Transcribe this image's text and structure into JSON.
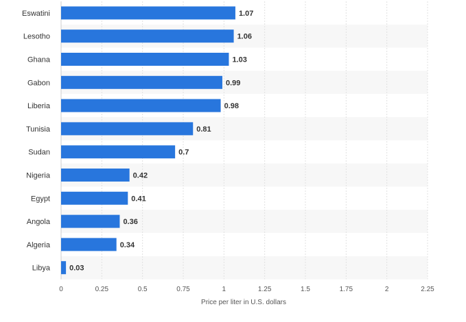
{
  "chart_data": {
    "type": "bar",
    "orientation": "horizontal",
    "categories": [
      "Eswatini",
      "Lesotho",
      "Ghana",
      "Gabon",
      "Liberia",
      "Tunisia",
      "Sudan",
      "Nigeria",
      "Egypt",
      "Angola",
      "Algeria",
      "Libya"
    ],
    "values": [
      1.07,
      1.06,
      1.03,
      0.99,
      0.98,
      0.81,
      0.7,
      0.42,
      0.41,
      0.36,
      0.34,
      0.03
    ],
    "value_labels": [
      "1.07",
      "1.06",
      "1.03",
      "0.99",
      "0.98",
      "0.81",
      "0.7",
      "0.42",
      "0.41",
      "0.36",
      "0.34",
      "0.03"
    ],
    "x_ticks": [
      "0",
      "0.25",
      "0.5",
      "0.75",
      "1",
      "1.25",
      "1.5",
      "1.75",
      "2",
      "2.25"
    ],
    "xlabel": "Price per liter in U.S. dollars",
    "xlim": [
      0,
      2.25
    ],
    "bar_color": "#2876dd",
    "grid": true,
    "band_color": "#f7f7f7"
  }
}
